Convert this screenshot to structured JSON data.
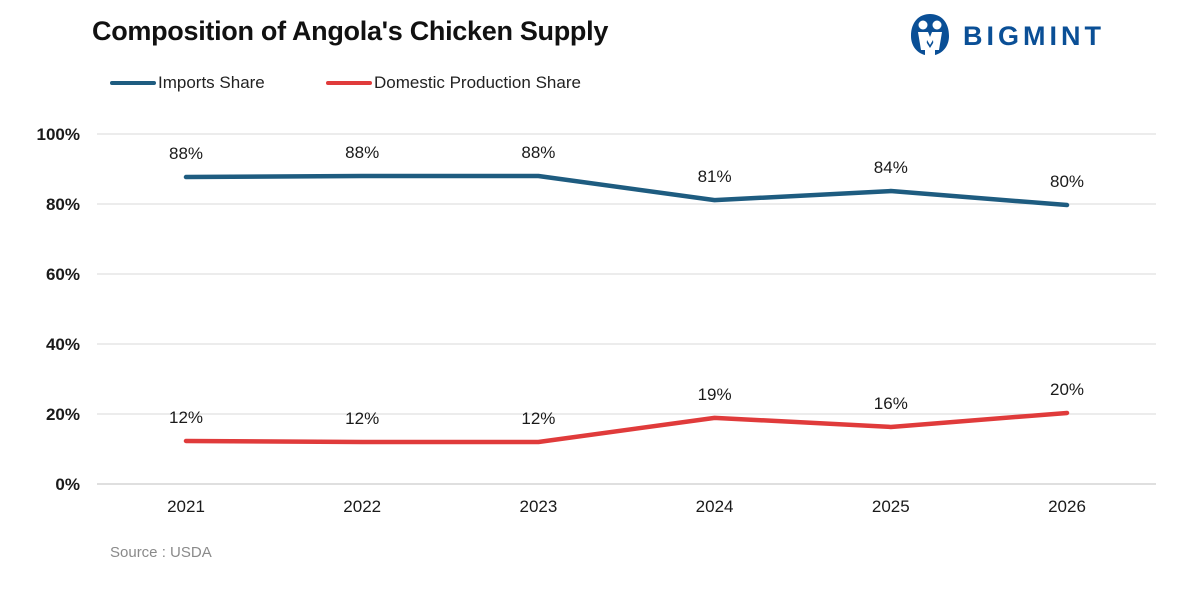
{
  "header": {
    "title": "Composition of Angola's Chicken Supply",
    "logo_text": "BIGMINT"
  },
  "source_note": "Source : USDA",
  "colors": {
    "imports": "#1e5c80",
    "domestic": "#e03b3b",
    "logo": "#0a4f96",
    "grid": "#d9d9d9"
  },
  "chart_data": {
    "type": "line",
    "title": "Composition of Angola's Chicken Supply",
    "xlabel": "",
    "ylabel": "",
    "categories": [
      "2021",
      "2022",
      "2023",
      "2024",
      "2025",
      "2026"
    ],
    "series": [
      {
        "name": "Imports Share",
        "values": [
          87.7,
          88.0,
          88.0,
          81.1,
          83.7,
          79.7
        ],
        "labels": [
          "88%",
          "88%",
          "88%",
          "81%",
          "84%",
          "80%"
        ],
        "color": "#1e5c80"
      },
      {
        "name": "Domestic Production Share",
        "values": [
          12.3,
          12.0,
          12.0,
          18.9,
          16.3,
          20.3
        ],
        "labels": [
          "12%",
          "12%",
          "12%",
          "19%",
          "16%",
          "20%"
        ],
        "color": "#e03b3b"
      }
    ],
    "ylim": [
      0,
      100
    ],
    "y_ticks": [
      0,
      20,
      40,
      60,
      80,
      100
    ],
    "y_tick_labels": [
      "0%",
      "20%",
      "40%",
      "60%",
      "80%",
      "100%"
    ],
    "grid": true,
    "legend_position": "top-left"
  }
}
